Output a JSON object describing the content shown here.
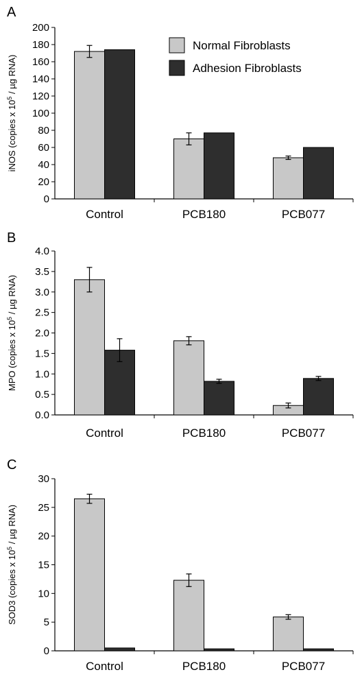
{
  "colors": {
    "normal": "#c8c8c8",
    "adhesion": "#2e2e2e",
    "axis": "#000000"
  },
  "legend": {
    "items": [
      "Normal Fibroblasts",
      "Adhesion Fibroblasts"
    ]
  },
  "chart_data": [
    {
      "type": "bar",
      "panel_letter": "A",
      "ylabel_prefix": "iNOS (copies x 10",
      "ylabel_sup": "5",
      "ylabel_suffix": " / µg RNA)",
      "ylim": [
        0,
        200
      ],
      "yticks": [
        "0",
        "20",
        "40",
        "60",
        "80",
        "100",
        "120",
        "140",
        "160",
        "180",
        "200"
      ],
      "categories": [
        "Control",
        "PCB180",
        "PCB077"
      ],
      "series": [
        {
          "name": "Normal Fibroblasts",
          "values": [
            172,
            70,
            48
          ],
          "errors": [
            7,
            7,
            2
          ]
        },
        {
          "name": "Adhesion Fibroblasts",
          "values": [
            174,
            77,
            60
          ],
          "errors": [
            null,
            null,
            null
          ]
        }
      ],
      "grid": false,
      "legend_position": "top-right"
    },
    {
      "type": "bar",
      "panel_letter": "B",
      "ylabel_prefix": "MPO (copies x 10",
      "ylabel_sup": "5",
      "ylabel_suffix": " / µg RNA)",
      "ylim": [
        0,
        4.0
      ],
      "yticks": [
        "0.0",
        "0.5",
        "1.0",
        "1.5",
        "2.0",
        "2.5",
        "3.0",
        "3.5",
        "4.0"
      ],
      "categories": [
        "Control",
        "PCB180",
        "PCB077"
      ],
      "series": [
        {
          "name": "Normal Fibroblasts",
          "values": [
            3.3,
            1.81,
            0.23
          ],
          "errors": [
            0.3,
            0.1,
            0.06
          ]
        },
        {
          "name": "Adhesion Fibroblasts",
          "values": [
            1.58,
            0.82,
            0.89
          ],
          "errors": [
            0.28,
            0.05,
            0.05
          ]
        }
      ],
      "grid": false
    },
    {
      "type": "bar",
      "panel_letter": "C",
      "ylabel_prefix": "SOD3 (copies x 10",
      "ylabel_sup": "5",
      "ylabel_suffix": " / µg RNA)",
      "ylim": [
        0,
        30
      ],
      "yticks": [
        "0",
        "5",
        "10",
        "15",
        "20",
        "25",
        "30"
      ],
      "categories": [
        "Control",
        "PCB180",
        "PCB077"
      ],
      "series": [
        {
          "name": "Normal Fibroblasts",
          "values": [
            26.5,
            12.3,
            5.9
          ],
          "errors": [
            0.8,
            1.1,
            0.4
          ]
        },
        {
          "name": "Adhesion Fibroblasts",
          "values": [
            0.5,
            0.35,
            0.35
          ],
          "errors": [
            null,
            null,
            null
          ]
        }
      ],
      "grid": false
    }
  ]
}
